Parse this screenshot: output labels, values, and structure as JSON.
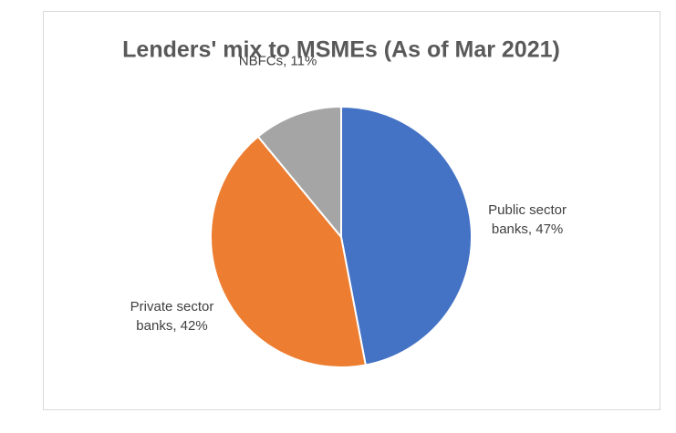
{
  "chart_data": {
    "type": "pie",
    "title": "Lenders' mix to MSMEs (As of Mar 2021)",
    "categories": [
      "Public sector banks",
      "Private sector banks",
      "NBFCs"
    ],
    "values": [
      47,
      42,
      11
    ],
    "value_labels": [
      ", 47%",
      ", 42%",
      ", 11%"
    ],
    "colors": [
      "#4472c4",
      "#ed7d31",
      "#a5a5a5"
    ]
  }
}
